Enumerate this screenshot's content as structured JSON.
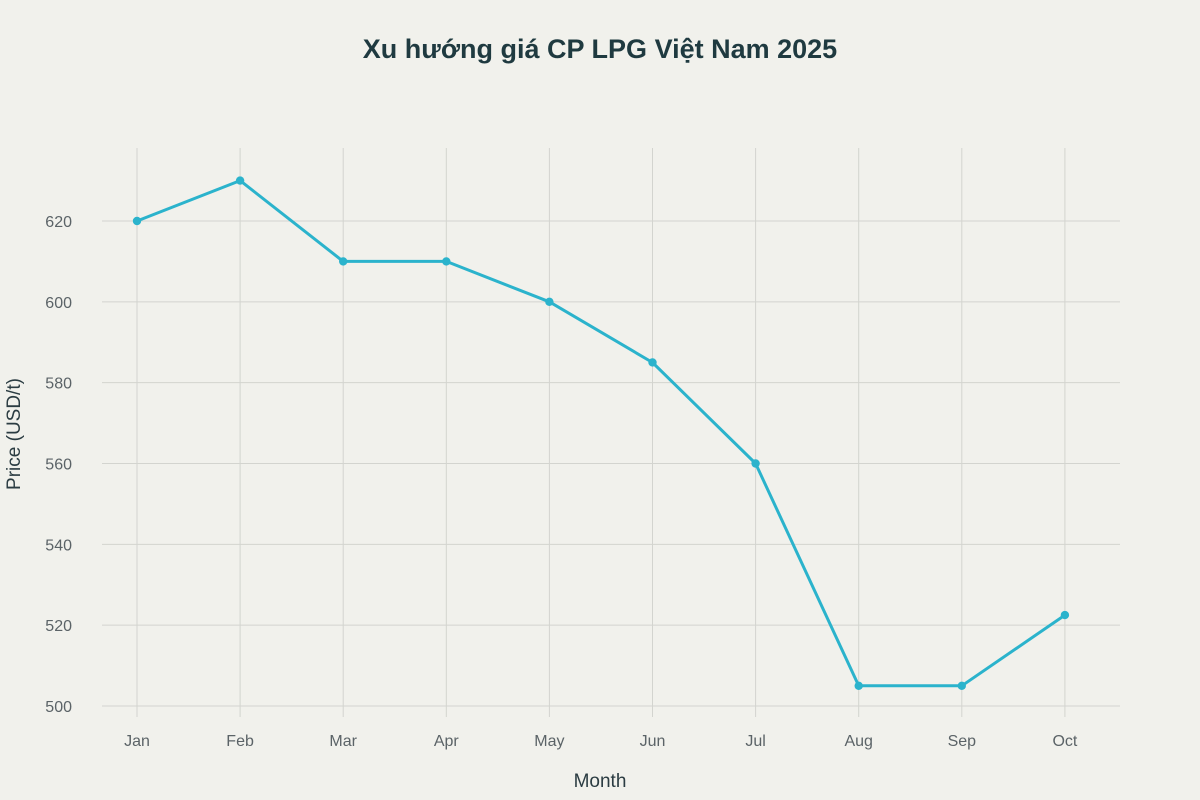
{
  "chart_data": {
    "type": "line",
    "title": "Xu hướng giá CP LPG Việt Nam 2025",
    "xlabel": "Month",
    "ylabel": "Price (USD/t)",
    "categories": [
      "Jan",
      "Feb",
      "Mar",
      "Apr",
      "May",
      "Jun",
      "Jul",
      "Aug",
      "Sep",
      "Oct"
    ],
    "series": [
      {
        "values": [
          620,
          630,
          610,
          610,
          600,
          585,
          560,
          505,
          505,
          522.5
        ],
        "color": "#2bb3cc"
      }
    ],
    "yticks": [
      500,
      520,
      540,
      560,
      580,
      600,
      620
    ],
    "ylim": [
      497,
      635
    ],
    "grid": true,
    "legend": "none"
  }
}
